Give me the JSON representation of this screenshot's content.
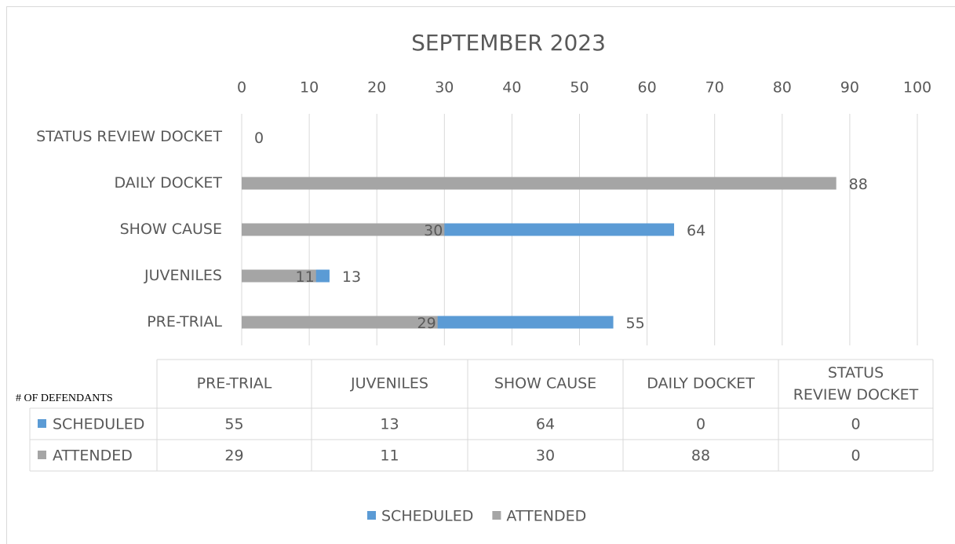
{
  "chart_data": {
    "type": "bar",
    "orientation": "horizontal",
    "title": "SEPTEMBER 2023",
    "categories": [
      "PRE-TRIAL",
      "JUVENILES",
      "SHOW CAUSE",
      "DAILY DOCKET",
      "STATUS REVIEW DOCKET"
    ],
    "series": [
      {
        "name": "SCHEDULED",
        "color": "#5b9bd5",
        "values": [
          55,
          13,
          64,
          0,
          0
        ]
      },
      {
        "name": "ATTENDED",
        "color": "#a5a5a5",
        "values": [
          29,
          11,
          30,
          88,
          0
        ]
      }
    ],
    "xlim": [
      0,
      100
    ],
    "xticks": [
      0,
      10,
      20,
      30,
      40,
      50,
      60,
      70,
      80,
      90,
      100
    ],
    "grid": true,
    "legend": "bottom",
    "table_label": "# OF DEFENDANTS"
  }
}
